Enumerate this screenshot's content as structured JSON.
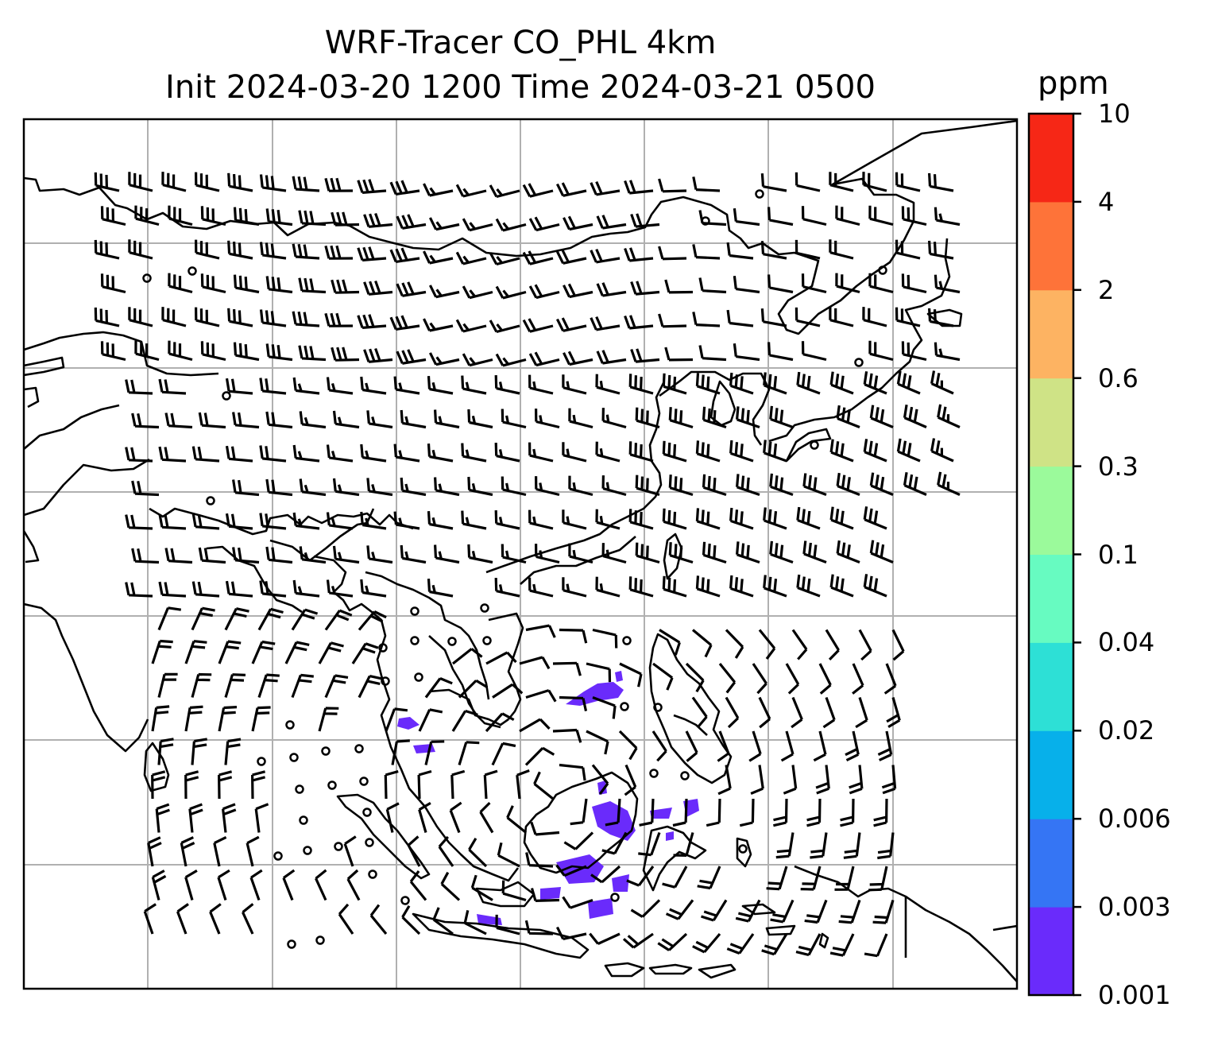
{
  "title": {
    "line1": "WRF-Tracer CO_PHL 4km",
    "line2": "Init 2024-03-20 1200 Time 2024-03-21 0500"
  },
  "colorbar": {
    "unit": "ppm",
    "levels": [
      "0.001",
      "0.003",
      "0.006",
      "0.02",
      "0.04",
      "0.1",
      "0.3",
      "0.6",
      "2",
      "4",
      "10"
    ],
    "colors": [
      "#6a2bfb",
      "#3575f4",
      "#07b0ea",
      "#2de0d6",
      "#67fbc1",
      "#9bfa9b",
      "#cfe386",
      "#fdb362",
      "#fe7339",
      "#f62716"
    ]
  },
  "map": {
    "gridlines": true,
    "tracer_color": "#6a2bfb"
  }
}
